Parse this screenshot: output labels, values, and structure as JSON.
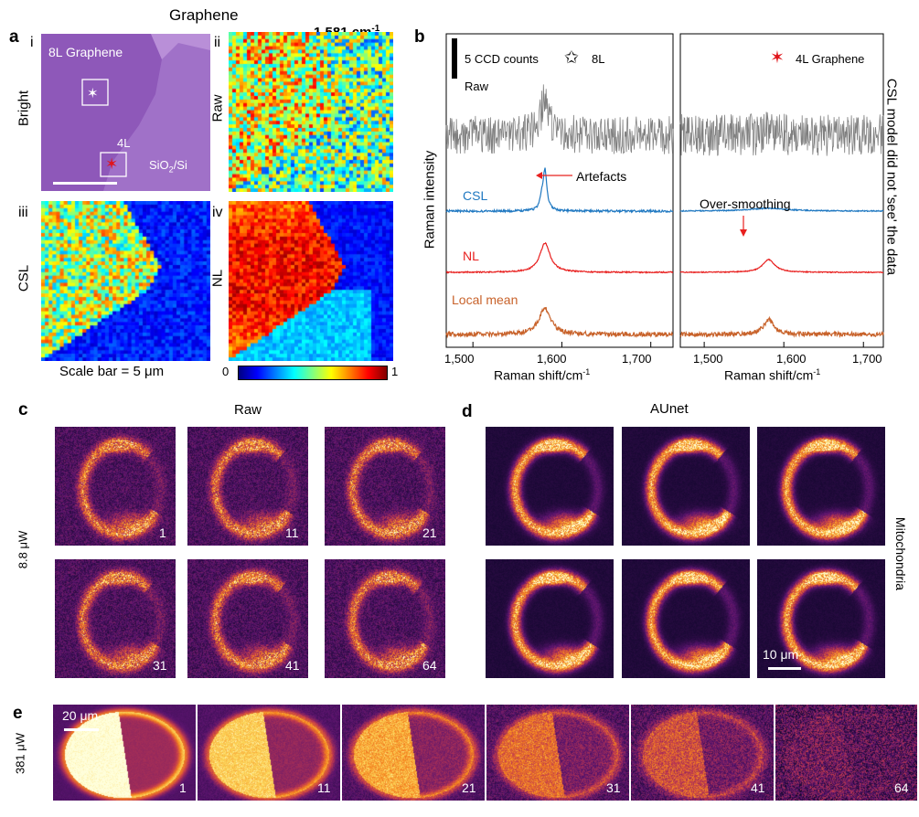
{
  "panel_a": {
    "label": "a",
    "title": "Graphene",
    "wavenumber": "1,581 cm",
    "wavenumber_sup": "-1",
    "sub_i": "i",
    "sub_ii": "ii",
    "sub_iii": "iii",
    "sub_iv": "iv",
    "row_bright": "Bright",
    "row_raw": "Raw",
    "row_csl": "CSL",
    "row_nl": "NL",
    "label_8l": "8L Graphene",
    "label_4l": "4L",
    "label_sio2": "SiO",
    "label_sio2_sub": "2",
    "label_sio2_tail": "/Si",
    "scale_bar": "Scale bar = 5 μm",
    "colorbar_min": "0",
    "colorbar_max": "1"
  },
  "panel_b": {
    "label": "b",
    "scale_label": "5 CCD counts",
    "legend_8l": "8L",
    "legend_4l": "4L Graphene",
    "ylabel": "Raman intensity",
    "xlabel": "Raman shift/cm",
    "xlabel_sup": "-1",
    "right_note": "CSL model did not 'see' the data",
    "trace_raw": "Raw",
    "trace_csl": "CSL",
    "trace_nl": "NL",
    "trace_local": "Local mean",
    "annot_artefacts": "Artefacts",
    "annot_oversmoothing": "Over-smoothing",
    "ticks": [
      "1,500",
      "1,600",
      "1,700"
    ],
    "colors": {
      "raw": "#808080",
      "csl": "#1f78c1",
      "nl": "#e8201f",
      "local": "#c8622a"
    }
  },
  "panel_c": {
    "label": "c",
    "title": "Raw",
    "power": "8.8 μW",
    "frames": [
      "1",
      "11",
      "21",
      "31",
      "41",
      "64"
    ]
  },
  "panel_d": {
    "label": "d",
    "title": "AUnet",
    "side": "Mitochondria",
    "scale": "10 μm"
  },
  "panel_e": {
    "label": "e",
    "power": "381 μW",
    "scale": "20 μm",
    "frames": [
      "1",
      "11",
      "21",
      "31",
      "41",
      "64"
    ]
  },
  "chart_data": [
    {
      "type": "line",
      "title": "8L",
      "xlabel": "Raman shift/cm-1",
      "ylabel": "Raman intensity",
      "xlim": [
        1470,
        1725
      ],
      "x_ticks": [
        1500,
        1600,
        1700
      ],
      "series": [
        {
          "name": "Raw",
          "peak_center": 1581,
          "peak_relative_height": 0.6
        },
        {
          "name": "CSL",
          "peak_center": 1581,
          "peak_relative_height": 1.0
        },
        {
          "name": "NL",
          "peak_center": 1581,
          "peak_relative_height": 0.85
        },
        {
          "name": "Local mean",
          "peak_center": 1581,
          "peak_relative_height": 0.7
        }
      ]
    },
    {
      "type": "line",
      "title": "4L Graphene",
      "xlabel": "Raman shift/cm-1",
      "ylabel": "Raman intensity",
      "xlim": [
        1470,
        1725
      ],
      "x_ticks": [
        1500,
        1600,
        1700
      ],
      "series": [
        {
          "name": "Raw",
          "peak_center": 1581,
          "peak_relative_height": 0.1
        },
        {
          "name": "CSL",
          "peak_center": 1581,
          "peak_relative_height": 0.05
        },
        {
          "name": "NL",
          "peak_center": 1581,
          "peak_relative_height": 0.4
        },
        {
          "name": "Local mean",
          "peak_center": 1581,
          "peak_relative_height": 0.45
        }
      ]
    }
  ]
}
